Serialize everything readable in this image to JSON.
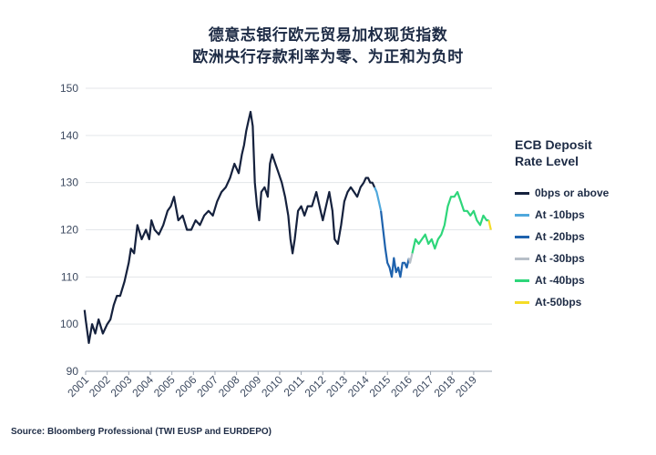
{
  "chart_data": {
    "type": "line",
    "title": "德意志银行欧元贸易加权现货指数",
    "subtitle": "欧洲央行存款利率为零、为正和为负时",
    "xlabel": "",
    "ylabel": "",
    "ylim": [
      90,
      150
    ],
    "yticks": [
      "90",
      "100",
      "110",
      "120",
      "130",
      "140",
      "150"
    ],
    "xticks": [
      "2001",
      "2002",
      "2003",
      "2004",
      "2005",
      "2006",
      "2007",
      "2008",
      "2009",
      "2010",
      "2011",
      "2012",
      "2013",
      "2014",
      "2015",
      "2016",
      "2017",
      "2018",
      "2019"
    ],
    "xlim": [
      2001,
      2019.85
    ],
    "grid": true,
    "legend_title": "ECB Deposit\nRate Level",
    "legend_position": "right",
    "series": [
      {
        "name": "0bps or above",
        "color": "#15213d",
        "x": [
          2000.95,
          2001.0,
          2001.15,
          2001.3,
          2001.45,
          2001.6,
          2001.8,
          2002.0,
          2002.15,
          2002.3,
          2002.45,
          2002.6,
          2002.8,
          2003.0,
          2003.1,
          2003.25,
          2003.4,
          2003.6,
          2003.8,
          2003.95,
          2004.05,
          2004.2,
          2004.4,
          2004.6,
          2004.8,
          2004.95,
          2005.1,
          2005.3,
          2005.5,
          2005.7,
          2005.9,
          2006.1,
          2006.3,
          2006.5,
          2006.7,
          2006.9,
          2007.1,
          2007.3,
          2007.5,
          2007.7,
          2007.9,
          2008.1,
          2008.25,
          2008.35,
          2008.45,
          2008.55,
          2008.65,
          2008.75,
          2008.85,
          2008.95,
          2009.05,
          2009.15,
          2009.3,
          2009.45,
          2009.55,
          2009.65,
          2009.8,
          2009.95,
          2010.1,
          2010.25,
          2010.4,
          2010.5,
          2010.6,
          2010.7,
          2010.85,
          2011.0,
          2011.15,
          2011.3,
          2011.5,
          2011.7,
          2011.85,
          2012.0,
          2012.15,
          2012.3,
          2012.45,
          2012.55,
          2012.7,
          2012.85,
          2013.0,
          2013.15,
          2013.3,
          2013.45,
          2013.6,
          2013.75,
          2013.9,
          2014.0,
          2014.1,
          2014.2,
          2014.3,
          2014.4
        ],
        "y": [
          103,
          101,
          96,
          100,
          98,
          101,
          98,
          100,
          101,
          104,
          106,
          106,
          109,
          113,
          116,
          115,
          121,
          118,
          120,
          118,
          122,
          120,
          119,
          121,
          124,
          125,
          127,
          122,
          123,
          120,
          120,
          122,
          121,
          123,
          124,
          123,
          126,
          128,
          129,
          131,
          134,
          132,
          136,
          138,
          141,
          143,
          145,
          142,
          130,
          125,
          122,
          128,
          129,
          127,
          134,
          136,
          134,
          132,
          130,
          127,
          123,
          118,
          115,
          118,
          124,
          125,
          123,
          125,
          125,
          128,
          125,
          122,
          125,
          128,
          124,
          118,
          117,
          121,
          126,
          128,
          129,
          128,
          127,
          129,
          130,
          131,
          131,
          130,
          130,
          129
        ]
      },
      {
        "name": "At -10bps",
        "color": "#4fa8dc",
        "x": [
          2014.4,
          2014.5,
          2014.6,
          2014.7
        ],
        "y": [
          129,
          128,
          126,
          124
        ]
      },
      {
        "name": "At -20bps",
        "color": "#1e62ad",
        "x": [
          2014.7,
          2014.8,
          2014.9,
          2015.0,
          2015.1,
          2015.2,
          2015.3,
          2015.4,
          2015.5,
          2015.6,
          2015.7,
          2015.8,
          2015.9,
          2016.0
        ],
        "y": [
          124,
          120,
          116,
          113,
          112,
          110,
          114,
          111,
          112,
          110,
          113,
          113,
          112,
          114
        ]
      },
      {
        "name": "At -30bps",
        "color": "#b7bfc8",
        "x": [
          2016.0,
          2016.05,
          2016.1,
          2016.15
        ],
        "y": [
          114,
          113,
          114,
          115
        ]
      },
      {
        "name": "At -40bps",
        "color": "#2ed67a",
        "x": [
          2016.15,
          2016.3,
          2016.45,
          2016.6,
          2016.75,
          2016.9,
          2017.05,
          2017.2,
          2017.35,
          2017.5,
          2017.65,
          2017.8,
          2017.95,
          2018.1,
          2018.25,
          2018.4,
          2018.55,
          2018.7,
          2018.85,
          2019.0,
          2019.15,
          2019.3,
          2019.45,
          2019.6,
          2019.7
        ],
        "y": [
          115,
          118,
          117,
          118,
          119,
          117,
          118,
          116,
          118,
          119,
          121,
          125,
          127,
          127,
          128,
          126,
          124,
          124,
          123,
          124,
          122,
          121,
          123,
          122,
          122
        ]
      },
      {
        "name": "At-50bps",
        "color": "#f5dc27",
        "x": [
          2019.7,
          2019.75,
          2019.8
        ],
        "y": [
          122,
          121,
          120
        ]
      }
    ]
  },
  "source": "Source: Bloomberg Professional (TWI EUSP and EURDEPO)"
}
